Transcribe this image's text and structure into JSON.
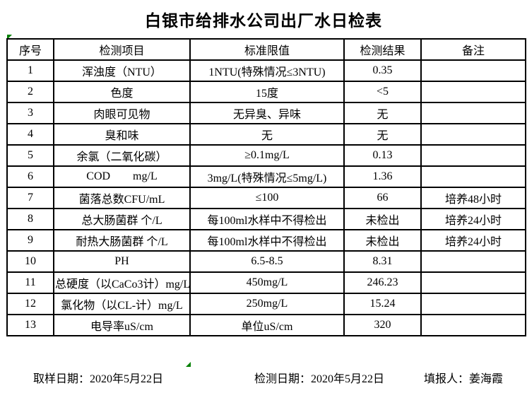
{
  "title": "白银市给排水公司出厂水日检表",
  "table": {
    "headers": [
      "序号",
      "检测项目",
      "标准限值",
      "检测结果",
      "备注"
    ],
    "rows": [
      [
        "1",
        "浑浊度（NTU）",
        "1NTU(特殊情况≤3NTU)",
        "0.35",
        ""
      ],
      [
        "2",
        "色度",
        "15度",
        "<5",
        ""
      ],
      [
        "3",
        "肉眼可见物",
        "无异臭、异味",
        "无",
        ""
      ],
      [
        "4",
        "臭和味",
        "无",
        "无",
        ""
      ],
      [
        "5",
        "余氯（二氧化碳）",
        "≥0.1mg/L",
        "0.13",
        ""
      ],
      [
        "6",
        "COD        mg/L",
        "3mg/L(特殊情况≤5mg/L)",
        "1.36",
        ""
      ],
      [
        "7",
        "菌落总数CFU/mL",
        "≤100",
        "66",
        "培养48小时"
      ],
      [
        "8",
        "总大肠菌群 个/L",
        "每100ml水样中不得检出",
        "未检出",
        "培养24小时"
      ],
      [
        "9",
        "耐热大肠菌群 个/L",
        "每100ml水样中不得检出",
        "未检出",
        "培养24小时"
      ],
      [
        "10",
        "PH",
        "6.5-8.5",
        "8.31",
        ""
      ],
      [
        "11",
        "总硬度（以CaCo3计）mg/L",
        "450mg/L",
        "246.23",
        ""
      ],
      [
        "12",
        "氯化物（以CL-计）mg/L",
        "250mg/L",
        "15.24",
        ""
      ],
      [
        "13",
        "电导率uS/cm",
        "单位uS/cm",
        "320",
        ""
      ]
    ]
  },
  "footer": {
    "sampling_label": "取样日期：",
    "sampling_date": "2020年5月22日",
    "test_label": "检测日期：",
    "test_date": "2020年5月22日",
    "reporter_label": "填报人：",
    "reporter_name": "姜海霞"
  },
  "colors": {
    "background": "#ffffff",
    "border": "#000000",
    "text": "#000000",
    "marker_green": "#008000"
  }
}
